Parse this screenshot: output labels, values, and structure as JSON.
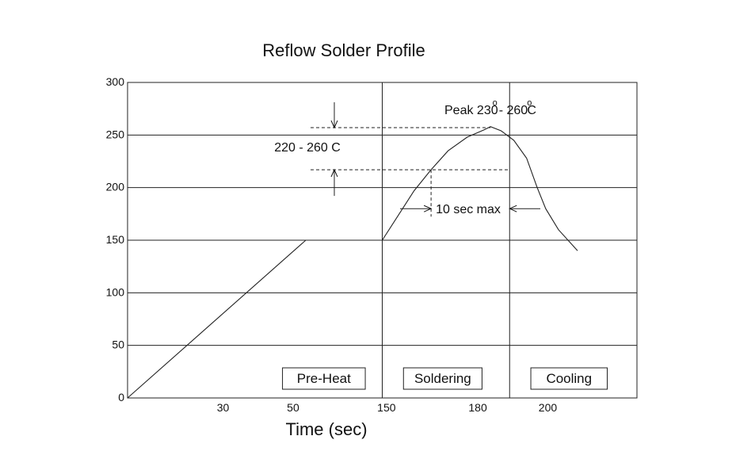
{
  "chart_data": {
    "type": "line",
    "title": "Reflow Solder Profile",
    "xlabel": "Time (sec)",
    "ylabel": "",
    "xlim": [
      0,
      240
    ],
    "ylim": [
      0,
      300
    ],
    "y_ticks": [
      0,
      50,
      100,
      150,
      200,
      250,
      300
    ],
    "x_tick_labels": [
      {
        "x": 45,
        "label": "30"
      },
      {
        "x": 78,
        "label": "50"
      },
      {
        "x": 122,
        "label": "150"
      },
      {
        "x": 165,
        "label": "180"
      },
      {
        "x": 198,
        "label": "200"
      }
    ],
    "grid": "horizontal",
    "phase_boundaries": [
      120,
      180
    ],
    "phases": [
      {
        "label": "Pre-Heat",
        "x_start": 73,
        "x_end": 112
      },
      {
        "label": "Soldering",
        "x_start": 130,
        "x_end": 167
      },
      {
        "label": "Cooling",
        "x_start": 190,
        "x_end": 226
      }
    ],
    "series": [
      {
        "points": [
          [
            0,
            0
          ],
          [
            84,
            150
          ],
          [
            120,
            150
          ],
          [
            128,
            175
          ],
          [
            135,
            197
          ],
          [
            143,
            217
          ],
          [
            151,
            235
          ],
          [
            160,
            248
          ],
          [
            168,
            255
          ],
          [
            171,
            258
          ],
          [
            176,
            254
          ],
          [
            182,
            245
          ],
          [
            188,
            228
          ],
          [
            193,
            200
          ],
          [
            197,
            180
          ],
          [
            203,
            160
          ],
          [
            212,
            140
          ]
        ]
      }
    ],
    "annotations": {
      "peak": "Peak 230",
      "peak_sep": "- 260",
      "peak_unit": "C",
      "degree": "o",
      "range": "220 - 260 C",
      "duration": "10 sec max"
    },
    "range_lines": {
      "upper": 257,
      "lower": 217
    },
    "duration_span": {
      "x_start": 143,
      "x_end": 180,
      "y": 180
    }
  }
}
